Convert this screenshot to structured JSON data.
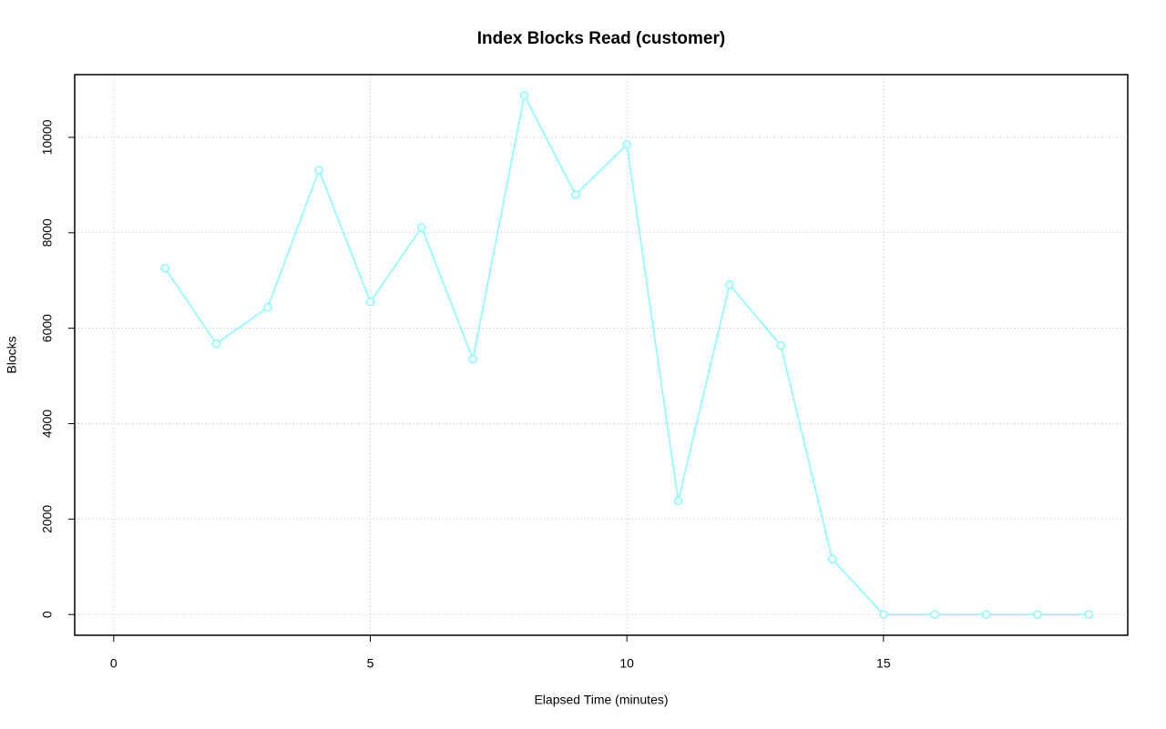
{
  "chart_data": {
    "type": "line",
    "title": "Index Blocks Read (customer)",
    "x_label": "Elapsed Time (minutes)",
    "y_label": "Blocks",
    "x": [
      1,
      2,
      3,
      4,
      5,
      6,
      7,
      8,
      9,
      10,
      11,
      12,
      13,
      14,
      15,
      16,
      17,
      18,
      19
    ],
    "series": [
      {
        "name": "customer",
        "color": "#80ffff",
        "values": [
          7257,
          5676,
          6438,
          9314,
          6552,
          8114,
          5352,
          10876,
          8800,
          9848,
          2381,
          6914,
          5638,
          1162,
          0,
          0,
          0,
          0,
          0
        ]
      }
    ],
    "xlim": [
      -0.76,
      19.76
    ],
    "xticks": [
      0,
      5,
      10,
      15
    ],
    "ylim": [
      -435,
      11315
    ],
    "yticks": [
      0,
      2000,
      4000,
      6000,
      8000,
      10000
    ],
    "grid": true
  }
}
